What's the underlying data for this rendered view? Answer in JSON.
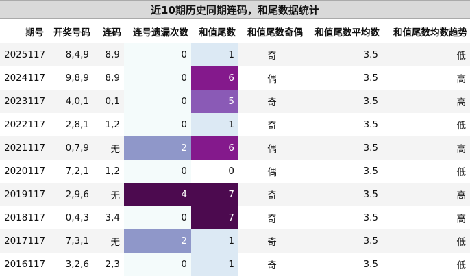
{
  "title": "近10期历史同期连码，和尾数据统计",
  "headers": [
    "期号",
    "开奖号码",
    "连码",
    "连号遗漏次数",
    "和值尾数",
    "和值尾数奇偶",
    "和值尾数平均数",
    "和值尾数均数趋势"
  ],
  "rows": [
    {
      "period": "2025117",
      "numbers": "8,4,9",
      "consecutive": "8,9",
      "miss": "0",
      "tail": "1",
      "parity": "奇",
      "avg": "3.5",
      "trend": "低"
    },
    {
      "period": "2024117",
      "numbers": "9,8,9",
      "consecutive": "8,9",
      "miss": "0",
      "tail": "6",
      "parity": "偶",
      "avg": "3.5",
      "trend": "高"
    },
    {
      "period": "2023117",
      "numbers": "4,0,1",
      "consecutive": "0,1",
      "miss": "0",
      "tail": "5",
      "parity": "奇",
      "avg": "3.5",
      "trend": "高"
    },
    {
      "period": "2022117",
      "numbers": "2,8,1",
      "consecutive": "1,2",
      "miss": "0",
      "tail": "1",
      "parity": "奇",
      "avg": "3.5",
      "trend": "低"
    },
    {
      "period": "2021117",
      "numbers": "0,7,9",
      "consecutive": "无",
      "miss": "2",
      "tail": "6",
      "parity": "偶",
      "avg": "3.5",
      "trend": "高"
    },
    {
      "period": "2020117",
      "numbers": "7,2,1",
      "consecutive": "1,2",
      "miss": "0",
      "tail": "0",
      "parity": "偶",
      "avg": "3.5",
      "trend": "低"
    },
    {
      "period": "2019117",
      "numbers": "2,9,6",
      "consecutive": "无",
      "miss": "4",
      "tail": "7",
      "parity": "奇",
      "avg": "3.5",
      "trend": "高"
    },
    {
      "period": "2018117",
      "numbers": "0,4,3",
      "consecutive": "3,4",
      "miss": "0",
      "tail": "7",
      "parity": "奇",
      "avg": "3.5",
      "trend": "高"
    },
    {
      "period": "2017117",
      "numbers": "7,3,1",
      "consecutive": "无",
      "miss": "2",
      "tail": "1",
      "parity": "奇",
      "avg": "3.5",
      "trend": "低"
    },
    {
      "period": "2016117",
      "numbers": "3,2,6",
      "consecutive": "2,3",
      "miss": "0",
      "tail": "1",
      "parity": "奇",
      "avg": "3.5",
      "trend": "低"
    }
  ]
}
